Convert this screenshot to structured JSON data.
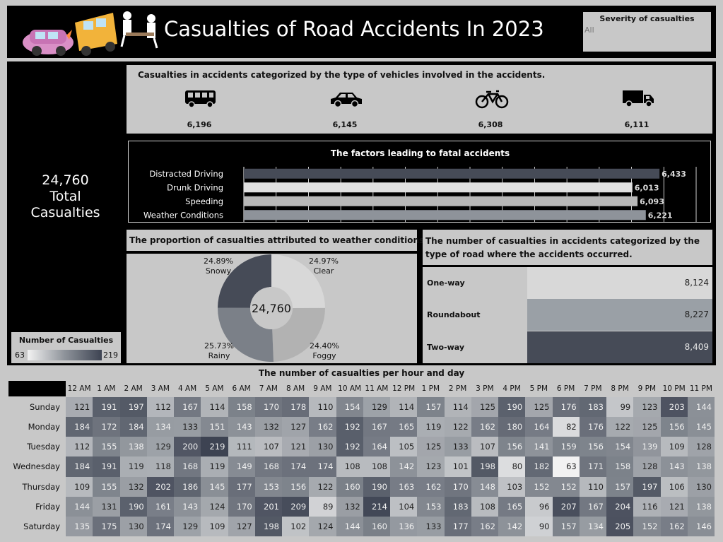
{
  "header": {
    "title": "Casualties of Road Accidents In 2023",
    "severity_filter_label": "Severity of casualties",
    "severity_filter_value": "All"
  },
  "totals": {
    "value": "24,760",
    "line1": "Total",
    "line2": "Casualties"
  },
  "legend": {
    "title": "Number of Casualties",
    "min": "63",
    "max": "219"
  },
  "vehicles": {
    "title": "Casualties in accidents categorized by the type of vehicles involved in the accidents.",
    "items": [
      {
        "icon": "bus-icon",
        "value": "6,196"
      },
      {
        "icon": "car-icon",
        "value": "6,145"
      },
      {
        "icon": "bicycle-icon",
        "value": "6,308"
      },
      {
        "icon": "truck-icon",
        "value": "6,111"
      }
    ]
  },
  "weather": {
    "title": "The proportion of casualties attributed to weather conditions.",
    "center": "24,760"
  },
  "road": {
    "title": "The number of casualties in accidents categorized by the type of road where the accidents occurred."
  },
  "heatmap_title": "The number of casualties per hour and day",
  "colors": {
    "dark": "#464b57",
    "mid": "#8e939a",
    "light": "#d8d8d8",
    "panel": "#c8c8c8"
  },
  "chart_data": [
    {
      "type": "bar",
      "title": "The factors leading to fatal accidents",
      "orientation": "horizontal",
      "categories": [
        "Distracted Driving",
        "Drunk Driving",
        "Speeding",
        "Weather Conditions"
      ],
      "values": [
        6433,
        6013,
        6093,
        6221
      ],
      "labels": [
        "6,433",
        "6,013",
        "6,093",
        "6,221"
      ],
      "colors": [
        "#464b57",
        "#e0e0e0",
        "#b8b8b8",
        "#8e939a"
      ],
      "xlim": [
        0,
        7000
      ]
    },
    {
      "type": "pie",
      "title": "The proportion of casualties attributed to weather conditions.",
      "categories": [
        "Clear",
        "Foggy",
        "Rainy",
        "Snowy"
      ],
      "values": [
        24.97,
        24.4,
        25.73,
        24.89
      ],
      "labels": [
        "24.97%",
        "24.40%",
        "25.73%",
        "24.89%"
      ],
      "colors": [
        "#d8d8d8",
        "#b2b2b2",
        "#7b8088",
        "#464b57"
      ]
    },
    {
      "type": "bar",
      "title": "The number of casualties in accidents categorized by the type of road where the accidents occurred.",
      "categories": [
        "One-way",
        "Roundabout",
        "Two-way"
      ],
      "values": [
        8124,
        8227,
        8409
      ],
      "labels": [
        "8,124",
        "8,227",
        "8,409"
      ],
      "colors": [
        "#d8d8d8",
        "#9aa0a6",
        "#464b57"
      ]
    },
    {
      "type": "heatmap",
      "title": "The number of casualties per hour and day",
      "x": [
        "12 AM",
        "1 AM",
        "2 AM",
        "3 AM",
        "4 AM",
        "5 AM",
        "6 AM",
        "7 AM",
        "8 AM",
        "9 AM",
        "10 AM",
        "11 AM",
        "12 PM",
        "1 PM",
        "2 PM",
        "3 PM",
        "4 PM",
        "5 PM",
        "6 PM",
        "7 PM",
        "8 PM",
        "9 PM",
        "10 PM",
        "11 PM"
      ],
      "y": [
        "Sunday",
        "Monday",
        "Tuesday",
        "Wednesday",
        "Thursday",
        "Friday",
        "Saturday"
      ],
      "min": 63,
      "max": 219,
      "values": [
        [
          121,
          191,
          197,
          112,
          167,
          114,
          158,
          170,
          178,
          110,
          154,
          129,
          114,
          157,
          114,
          125,
          190,
          125,
          176,
          183,
          99,
          123,
          203,
          144
        ],
        [
          184,
          172,
          184,
          134,
          133,
          151,
          143,
          132,
          127,
          162,
          192,
          167,
          165,
          119,
          122,
          162,
          180,
          164,
          82,
          176,
          122,
          125,
          156,
          145
        ],
        [
          112,
          155,
          138,
          129,
          200,
          219,
          111,
          107,
          121,
          130,
          192,
          164,
          105,
          125,
          133,
          107,
          156,
          141,
          159,
          156,
          154,
          139,
          109,
          128
        ],
        [
          184,
          191,
          119,
          118,
          168,
          119,
          149,
          168,
          174,
          174,
          108,
          108,
          142,
          123,
          101,
          198,
          80,
          182,
          63,
          171,
          158,
          128,
          143,
          138
        ],
        [
          109,
          155,
          132,
          202,
          186,
          145,
          177,
          153,
          156,
          122,
          160,
          190,
          163,
          162,
          170,
          148,
          103,
          152,
          152,
          110,
          157,
          197,
          106,
          130
        ],
        [
          144,
          131,
          190,
          161,
          143,
          124,
          170,
          201,
          209,
          89,
          132,
          214,
          104,
          153,
          183,
          108,
          165,
          96,
          207,
          167,
          204,
          116,
          121,
          138
        ],
        [
          135,
          175,
          130,
          174,
          129,
          109,
          127,
          198,
          102,
          124,
          144,
          160,
          136,
          133,
          177,
          162,
          142,
          90,
          157,
          134,
          205,
          152,
          162,
          146
        ]
      ]
    }
  ]
}
